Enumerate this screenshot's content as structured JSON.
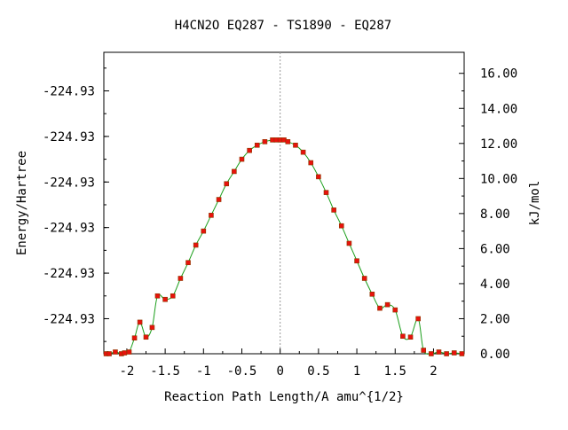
{
  "chart_data": {
    "type": "line",
    "title": "H4CN2O   EQ287 - TS1890 - EQ287",
    "xlabel": "Reaction Path Length/A amu^{1/2}",
    "ylabel_left": "Energy/Hartree",
    "ylabel_right": "kJ/mol",
    "xlim": [
      -2.3,
      2.4
    ],
    "ylim_kjmol": [
      0,
      17.2
    ],
    "x_ticks": [
      -2,
      -1.5,
      -1,
      -0.5,
      0,
      0.5,
      1,
      1.5,
      2
    ],
    "x_tick_labels": [
      "-2",
      "-1.5",
      "-1",
      "-0.5",
      "0",
      "0.5",
      "1",
      "1.5",
      "2"
    ],
    "y_left_ticks_kjmol": [
      2,
      4.6,
      7.2,
      9.8,
      12.4,
      15.0
    ],
    "y_left_tick_labels": [
      "-224.93",
      "-224.93",
      "-224.93",
      "-224.93",
      "-224.93",
      "-224.93"
    ],
    "y_right_ticks": [
      0,
      2,
      4,
      6,
      8,
      10,
      12,
      14,
      16
    ],
    "y_right_tick_labels": [
      "0.00",
      "2.00",
      "4.00",
      "6.00",
      "8.00",
      "10.00",
      "12.00",
      "14.00",
      "16.00"
    ],
    "grid": false,
    "series": [
      {
        "color": "#1a9e1a",
        "marker_color": "#e8120c",
        "x": [
          -2.27,
          -2.23,
          -2.15,
          -2.07,
          -2.03,
          -1.97,
          -1.9,
          -1.83,
          -1.75,
          -1.67,
          -1.6,
          -1.5,
          -1.4,
          -1.3,
          -1.2,
          -1.1,
          -1.0,
          -0.9,
          -0.8,
          -0.7,
          -0.6,
          -0.5,
          -0.4,
          -0.3,
          -0.2,
          -0.1,
          -0.05,
          0.0,
          0.05,
          0.1,
          0.2,
          0.3,
          0.4,
          0.5,
          0.6,
          0.7,
          0.8,
          0.9,
          1.0,
          1.1,
          1.2,
          1.3,
          1.4,
          1.5,
          1.6,
          1.7,
          1.8,
          1.87,
          1.97,
          2.07,
          2.17,
          2.27,
          2.37
        ],
        "y": [
          0.0,
          0.0,
          0.1,
          0.0,
          0.05,
          0.1,
          0.9,
          1.8,
          0.95,
          1.5,
          3.3,
          3.1,
          3.3,
          4.3,
          5.2,
          6.2,
          7.0,
          7.9,
          8.8,
          9.7,
          10.4,
          11.1,
          11.6,
          11.9,
          12.1,
          12.2,
          12.2,
          12.2,
          12.2,
          12.1,
          11.9,
          11.5,
          10.9,
          10.1,
          9.2,
          8.2,
          7.3,
          6.3,
          5.3,
          4.3,
          3.4,
          2.6,
          2.8,
          2.5,
          1.0,
          0.95,
          2.0,
          0.2,
          0.0,
          0.1,
          0.0,
          0.05,
          0.0
        ]
      }
    ]
  }
}
